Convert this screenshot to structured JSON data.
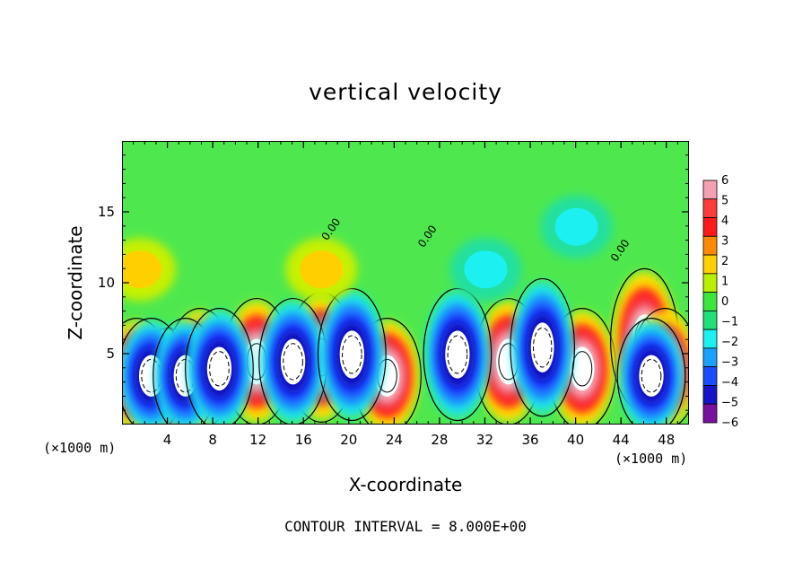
{
  "chart_data": {
    "type": "heatmap",
    "title": "vertical velocity",
    "xlabel": "X-coordinate",
    "ylabel": "Z-coordinate",
    "x_unit_label_left": "(×1000 m)",
    "x_unit_label_right": "(×1000 m)",
    "xlim": [
      0,
      50
    ],
    "ylim": [
      0,
      20
    ],
    "x_ticks": [
      "4",
      "8",
      "12",
      "16",
      "20",
      "24",
      "28",
      "32",
      "36",
      "40",
      "44",
      "48"
    ],
    "y_ticks": [
      "5",
      "10",
      "15"
    ],
    "footer": "CONTOUR INTERVAL = 8.000E+00",
    "contour_label": "0.00",
    "colorbar": {
      "ticks": [
        "6",
        "5",
        "4",
        "3",
        "2",
        "1",
        "0",
        "−1",
        "−2",
        "−3",
        "−4",
        "−5",
        "−6"
      ],
      "colors": [
        "#f5a0b0",
        "#ff3b3b",
        "#ff1a1a",
        "#ff8a00",
        "#ffd000",
        "#b8f000",
        "#3ce63c",
        "#20e07a",
        "#1cf0f0",
        "#1ca0ff",
        "#1a4cff",
        "#1414c8",
        "#7a10a0"
      ]
    },
    "background_color": "#4ee84e",
    "features": [
      {
        "type": "updraft",
        "x": 1.2,
        "z": 3.5,
        "w": 6
      },
      {
        "type": "updraft",
        "x": 4.0,
        "z": 3.0,
        "w": 6
      },
      {
        "type": "updraft",
        "x": 6.8,
        "z": 4.0,
        "w": 6
      },
      {
        "type": "updraft",
        "x": 11.8,
        "z": 4.5,
        "w": 6
      },
      {
        "type": "updraft",
        "x": 17.5,
        "z": 4.8,
        "w": 6
      },
      {
        "type": "updraft",
        "x": 23.3,
        "z": 3.5,
        "w": 6
      },
      {
        "type": "updraft",
        "x": 34.0,
        "z": 4.5,
        "w": 6
      },
      {
        "type": "updraft",
        "x": 40.5,
        "z": 4.0,
        "w": 6
      },
      {
        "type": "updraft",
        "x": 46.0,
        "z": 6.0,
        "w": 6
      },
      {
        "type": "updraft",
        "x": 47.8,
        "z": 4.0,
        "w": 6
      },
      {
        "type": "downdraft",
        "x": 2.5,
        "z": 3.5,
        "w": -6
      },
      {
        "type": "downdraft",
        "x": 5.5,
        "z": 3.5,
        "w": -5
      },
      {
        "type": "downdraft",
        "x": 8.5,
        "z": 4.0,
        "w": -6
      },
      {
        "type": "downdraft",
        "x": 15.0,
        "z": 4.5,
        "w": -6
      },
      {
        "type": "downdraft",
        "x": 20.2,
        "z": 5.0,
        "w": -6
      },
      {
        "type": "downdraft",
        "x": 29.5,
        "z": 5.0,
        "w": -6
      },
      {
        "type": "downdraft",
        "x": 37.0,
        "z": 5.5,
        "w": -5
      },
      {
        "type": "downdraft",
        "x": 46.6,
        "z": 3.5,
        "w": -6
      },
      {
        "type": "weak_positive",
        "x": 1.5,
        "z": 11.0,
        "w": 2
      },
      {
        "type": "weak_positive",
        "x": 17.5,
        "z": 11.0,
        "w": 1
      },
      {
        "type": "weak_negative",
        "x": 32.0,
        "z": 11.0,
        "w": -2
      },
      {
        "type": "weak_negative",
        "x": 40.0,
        "z": 14.0,
        "w": -1
      }
    ]
  }
}
